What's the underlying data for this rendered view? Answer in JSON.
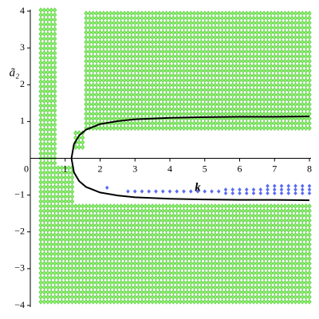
{
  "chart_data": {
    "type": "region-scatter",
    "xlabel": "k",
    "ylabel": "ã₂",
    "xlim": [
      0,
      8
    ],
    "ylim": [
      -4,
      4
    ],
    "xticks": [
      0,
      1,
      2,
      3,
      4,
      5,
      6,
      7,
      8
    ],
    "yticks": [
      {
        "value": -4,
        "label": "−4"
      },
      {
        "value": -3,
        "label": "−3"
      },
      {
        "value": -2,
        "label": "−2"
      },
      {
        "value": -1,
        "label": "−1"
      },
      1,
      2,
      3,
      4
    ],
    "green": {
      "color": "#8cf06a",
      "stroke": "#4fc63a",
      "step": [
        0.1,
        0.13
      ],
      "regions": [
        {
          "xlim": [
            0.3,
            0.7
          ],
          "ylim": [
            -3.9,
            4
          ]
        },
        {
          "xlim": [
            0.8,
            1.2
          ],
          "ylim": [
            -3.9,
            -0.3
          ]
        },
        {
          "xlim": [
            1.3,
            1.5
          ],
          "ylim": [
            0.3,
            0.7
          ]
        },
        {
          "xlim": [
            1.6,
            8
          ],
          "ylim": [
            0.82,
            4
          ]
        },
        {
          "xlim": [
            1.3,
            8
          ],
          "ylim": [
            -3.9,
            -1.3
          ]
        }
      ]
    },
    "blue": {
      "color": "#5a6cf0",
      "x": [
        2.2,
        2.8,
        3.0,
        3.2,
        3.4,
        3.6,
        3.8,
        4.0,
        4.2,
        4.4,
        4.6,
        4.8,
        5.0,
        5.2,
        5.4,
        5.6,
        5.8,
        6.0,
        6.2,
        6.4,
        6.6,
        6.8,
        7.0,
        7.2,
        7.4,
        7.6,
        7.8,
        8.0,
        5.6,
        5.8,
        6.0,
        6.2,
        6.4,
        6.6,
        6.8,
        7.0,
        7.2,
        7.4,
        7.6,
        7.8,
        8.0,
        6.8,
        7.0,
        7.2,
        7.4,
        7.6,
        7.8,
        8.0
      ],
      "y": [
        -0.8,
        -0.9,
        -0.9,
        -0.9,
        -0.9,
        -0.9,
        -0.9,
        -0.9,
        -0.9,
        -0.9,
        -0.9,
        -0.9,
        -0.9,
        -0.9,
        -0.9,
        -0.95,
        -0.95,
        -0.95,
        -0.95,
        -0.95,
        -0.95,
        -0.95,
        -0.95,
        -0.95,
        -0.95,
        -0.95,
        -0.95,
        -0.95,
        -0.85,
        -0.85,
        -0.85,
        -0.85,
        -0.85,
        -0.85,
        -0.85,
        -0.85,
        -0.85,
        -0.85,
        -0.85,
        -0.85,
        -0.85,
        -0.75,
        -0.75,
        -0.75,
        -0.75,
        -0.75,
        -0.75,
        -0.75
      ]
    },
    "curves": [
      {
        "color": "#000000",
        "x": [
          1.18,
          1.25,
          1.4,
          1.6,
          2,
          2.5,
          3,
          4,
          5,
          6,
          7,
          8
        ],
        "y": [
          0,
          0.38,
          0.62,
          0.78,
          0.93,
          1.01,
          1.06,
          1.1,
          1.12,
          1.13,
          1.13,
          1.14
        ]
      },
      {
        "color": "#000000",
        "x": [
          1.18,
          1.25,
          1.4,
          1.6,
          2,
          2.5,
          3,
          4,
          5,
          6,
          7,
          8
        ],
        "y": [
          0,
          -0.38,
          -0.62,
          -0.78,
          -0.93,
          -1.01,
          -1.06,
          -1.1,
          -1.12,
          -1.13,
          -1.13,
          -1.14
        ]
      }
    ]
  }
}
